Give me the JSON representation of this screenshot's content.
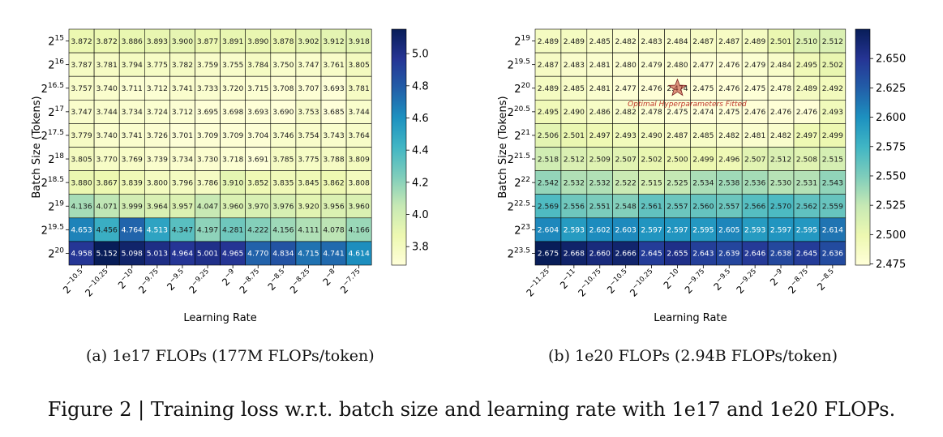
{
  "figure_caption": "Figure 2 | Training loss w.r.t. batch size and learning rate with 1e17 and 1e20 FLOPs.",
  "chart_data": [
    {
      "type": "heatmap",
      "subcaption": "(a) 1e17 FLOPs (177M FLOPs/token)",
      "xlabel": "Learning Rate",
      "ylabel": "Batch Size (Tokens)",
      "x_exponents": [
        "-10.5",
        "-10.25",
        "-10",
        "-9.75",
        "-9.5",
        "-9.25",
        "-9",
        "-8.75",
        "-8.5",
        "-8.25",
        "-8",
        "-7.75"
      ],
      "y_exponents": [
        "15",
        "16",
        "16.5",
        "17",
        "17.5",
        "18",
        "18.5",
        "19",
        "19.5",
        "20"
      ],
      "tick_base": "2",
      "values": [
        [
          "3.872",
          "3.872",
          "3.886",
          "3.893",
          "3.900",
          "3.877",
          "3.891",
          "3.890",
          "3.878",
          "3.902",
          "3.912",
          "3.918"
        ],
        [
          "3.787",
          "3.781",
          "3.794",
          "3.775",
          "3.782",
          "3.759",
          "3.755",
          "3.784",
          "3.750",
          "3.747",
          "3.761",
          "3.805"
        ],
        [
          "3.757",
          "3.740",
          "3.711",
          "3.712",
          "3.741",
          "3.733",
          "3.720",
          "3.715",
          "3.708",
          "3.707",
          "3.693",
          "3.781"
        ],
        [
          "3.747",
          "3.744",
          "3.734",
          "3.724",
          "3.712",
          "3.695",
          "3.698",
          "3.693",
          "3.690",
          "3.753",
          "3.685",
          "3.744"
        ],
        [
          "3.779",
          "3.740",
          "3.741",
          "3.726",
          "3.701",
          "3.709",
          "3.709",
          "3.704",
          "3.746",
          "3.754",
          "3.743",
          "3.764"
        ],
        [
          "3.805",
          "3.770",
          "3.769",
          "3.739",
          "3.734",
          "3.730",
          "3.718",
          "3.691",
          "3.785",
          "3.775",
          "3.788",
          "3.809"
        ],
        [
          "3.880",
          "3.867",
          "3.839",
          "3.800",
          "3.796",
          "3.786",
          "3.910",
          "3.852",
          "3.835",
          "3.845",
          "3.862",
          "3.808"
        ],
        [
          "4.136",
          "4.071",
          "3.999",
          "3.964",
          "3.957",
          "4.047",
          "3.960",
          "3.970",
          "3.976",
          "3.920",
          "3.956",
          "3.960"
        ],
        [
          "4.653",
          "4.456",
          "4.764",
          "4.513",
          "4.347",
          "4.197",
          "4.281",
          "4.222",
          "4.156",
          "4.111",
          "4.078",
          "4.166"
        ],
        [
          "4.958",
          "5.152",
          "5.098",
          "5.013",
          "4.964",
          "5.001",
          "4.965",
          "4.770",
          "4.834",
          "4.715",
          "4.741",
          "4.614"
        ]
      ],
      "colorbar": {
        "vmin": 3.685,
        "vmax": 5.152,
        "ticks": [
          "3.8",
          "4.0",
          "4.2",
          "4.4",
          "4.6",
          "4.8",
          "5.0"
        ]
      },
      "colormap": [
        "#ffffd9",
        "#edf8b1",
        "#c7e9b4",
        "#7fcdbb",
        "#41b6c4",
        "#1d91c0",
        "#225ea8",
        "#253494",
        "#081d58"
      ]
    },
    {
      "type": "heatmap",
      "subcaption": "(b) 1e20 FLOPs (2.94B FLOPs/token)",
      "xlabel": "Learning Rate",
      "ylabel": "Batch Size (Tokens)",
      "x_exponents": [
        "-11.25",
        "-11",
        "-10.75",
        "-10.5",
        "-10.25",
        "-10",
        "-9.75",
        "-9.5",
        "-9.25",
        "-9",
        "-8.75",
        "-8.5"
      ],
      "y_exponents": [
        "19",
        "19.5",
        "20",
        "20.5",
        "21",
        "21.5",
        "22",
        "22.5",
        "23",
        "23.5"
      ],
      "tick_base": "2",
      "values": [
        [
          "2.489",
          "2.489",
          "2.485",
          "2.482",
          "2.483",
          "2.484",
          "2.487",
          "2.487",
          "2.489",
          "2.501",
          "2.510",
          "2.512"
        ],
        [
          "2.487",
          "2.483",
          "2.481",
          "2.480",
          "2.479",
          "2.480",
          "2.477",
          "2.476",
          "2.479",
          "2.484",
          "2.495",
          "2.502"
        ],
        [
          "2.489",
          "2.485",
          "2.481",
          "2.477",
          "2.476",
          "2.474",
          "2.475",
          "2.476",
          "2.475",
          "2.478",
          "2.489",
          "2.492"
        ],
        [
          "2.495",
          "2.490",
          "2.486",
          "2.482",
          "2.478",
          "2.475",
          "2.474",
          "2.475",
          "2.476",
          "2.476",
          "2.476",
          "2.493"
        ],
        [
          "2.506",
          "2.501",
          "2.497",
          "2.493",
          "2.490",
          "2.487",
          "2.485",
          "2.482",
          "2.481",
          "2.482",
          "2.497",
          "2.499"
        ],
        [
          "2.518",
          "2.512",
          "2.509",
          "2.507",
          "2.502",
          "2.500",
          "2.499",
          "2.496",
          "2.507",
          "2.512",
          "2.508",
          "2.515"
        ],
        [
          "2.542",
          "2.532",
          "2.532",
          "2.522",
          "2.515",
          "2.525",
          "2.534",
          "2.538",
          "2.536",
          "2.530",
          "2.531",
          "2.543"
        ],
        [
          "2.569",
          "2.556",
          "2.551",
          "2.548",
          "2.561",
          "2.557",
          "2.560",
          "2.557",
          "2.566",
          "2.570",
          "2.562",
          "2.559"
        ],
        [
          "2.604",
          "2.593",
          "2.602",
          "2.603",
          "2.597",
          "2.597",
          "2.595",
          "2.605",
          "2.593",
          "2.597",
          "2.595",
          "2.614"
        ],
        [
          "2.675",
          "2.668",
          "2.660",
          "2.666",
          "2.645",
          "2.655",
          "2.643",
          "2.639",
          "2.646",
          "2.638",
          "2.645",
          "2.636"
        ]
      ],
      "colorbar": {
        "vmin": 2.474,
        "vmax": 2.675,
        "ticks": [
          "2.475",
          "2.500",
          "2.525",
          "2.550",
          "2.575",
          "2.600",
          "2.625",
          "2.650"
        ]
      },
      "colormap": [
        "#ffffd9",
        "#edf8b1",
        "#c7e9b4",
        "#7fcdbb",
        "#41b6c4",
        "#1d91c0",
        "#225ea8",
        "#253494",
        "#081d58"
      ],
      "annotation": {
        "text": "Optimal Hyperparameters Fitted",
        "row": 2,
        "col": 5,
        "color": "#c0392b"
      }
    }
  ]
}
